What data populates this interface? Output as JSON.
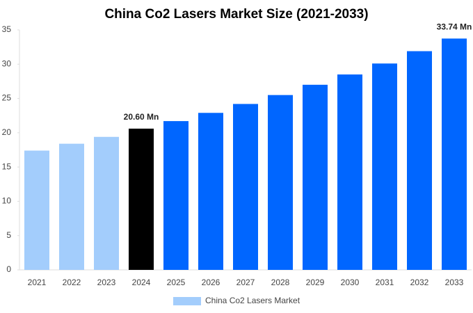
{
  "chart_data": {
    "type": "bar",
    "title": "China Co2 Lasers Market Size (2021-2033)",
    "categories": [
      "2021",
      "2022",
      "2023",
      "2024",
      "2025",
      "2026",
      "2027",
      "2028",
      "2029",
      "2030",
      "2031",
      "2032",
      "2033"
    ],
    "series": [
      {
        "name": "China Co2 Lasers Market",
        "color": "#a3cdfc",
        "values": [
          17.4,
          18.4,
          19.4,
          20.6,
          21.7,
          22.9,
          24.2,
          25.5,
          27.0,
          28.5,
          30.1,
          31.9,
          33.74
        ],
        "value_labels": [
          null,
          null,
          null,
          "20.60 Mn",
          null,
          null,
          null,
          null,
          null,
          null,
          null,
          null,
          "33.74 Mn"
        ],
        "bar_colors": [
          "#a3cdfc",
          "#a3cdfc",
          "#a3cdfc",
          "#000000",
          "#0066ff",
          "#0066ff",
          "#0066ff",
          "#0066ff",
          "#0066ff",
          "#0066ff",
          "#0066ff",
          "#0066ff",
          "#0066ff"
        ]
      }
    ],
    "ylim": [
      0,
      35
    ],
    "yticks": [
      0,
      5,
      10,
      15,
      20,
      25,
      30,
      35
    ],
    "grid": false,
    "legend": "bottom"
  }
}
